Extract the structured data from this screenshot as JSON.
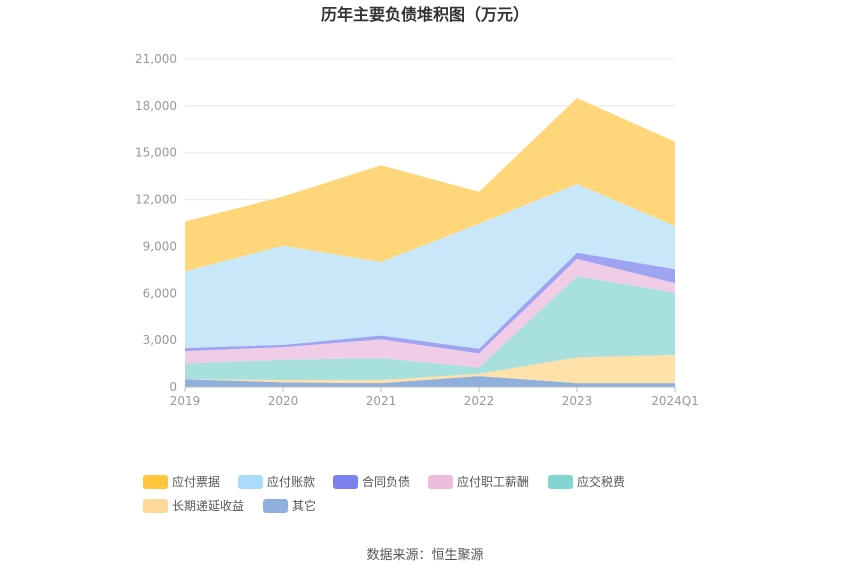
{
  "chart_data": {
    "type": "area",
    "stacked": true,
    "title": "历年主要负债堆积图（万元）",
    "source": "数据来源：恒生聚源",
    "categories": [
      "2019",
      "2020",
      "2021",
      "2022",
      "2023",
      "2024Q1"
    ],
    "ylim": [
      0,
      21000
    ],
    "yticks": [
      "0",
      "3,000",
      "6,000",
      "9,000",
      "12,000",
      "15,000",
      "18,000",
      "21,000"
    ],
    "grid": true,
    "legend_position": "bottom-left",
    "series": [
      {
        "name": "其它",
        "color": "#8fb0dc",
        "values": [
          500,
          300,
          250,
          700,
          250,
          250
        ]
      },
      {
        "name": "长期递延收益",
        "color": "#ffe0a8",
        "values": [
          0,
          150,
          200,
          150,
          1650,
          1800
        ]
      },
      {
        "name": "应交税费",
        "color": "#a8e0de",
        "values": [
          1000,
          1300,
          1400,
          400,
          5200,
          4000
        ]
      },
      {
        "name": "应付职工薪酬",
        "color": "#f0cce6",
        "values": [
          800,
          800,
          1200,
          900,
          1100,
          600
        ]
      },
      {
        "name": "合同负债",
        "color": "#9fa4f2",
        "values": [
          200,
          150,
          250,
          300,
          400,
          900
        ]
      },
      {
        "name": "应付账款",
        "color": "#c8e8fa",
        "values": [
          4900,
          6350,
          4700,
          8000,
          4400,
          2750
        ]
      },
      {
        "name": "应付票据",
        "color": "#ffd77a",
        "values": [
          3200,
          3150,
          6200,
          2050,
          5500,
          5400
        ]
      }
    ],
    "legend": [
      {
        "name": "应付票据",
        "color": "#ffc53d"
      },
      {
        "name": "应付账款",
        "color": "#a8dcfa"
      },
      {
        "name": "合同负债",
        "color": "#7b7ff0"
      },
      {
        "name": "应付职工薪酬",
        "color": "#edbcdf"
      },
      {
        "name": "应交税费",
        "color": "#82d6d2"
      },
      {
        "name": "长期递延收益",
        "color": "#ffd999"
      },
      {
        "name": "其它",
        "color": "#8fb0dc"
      }
    ]
  }
}
